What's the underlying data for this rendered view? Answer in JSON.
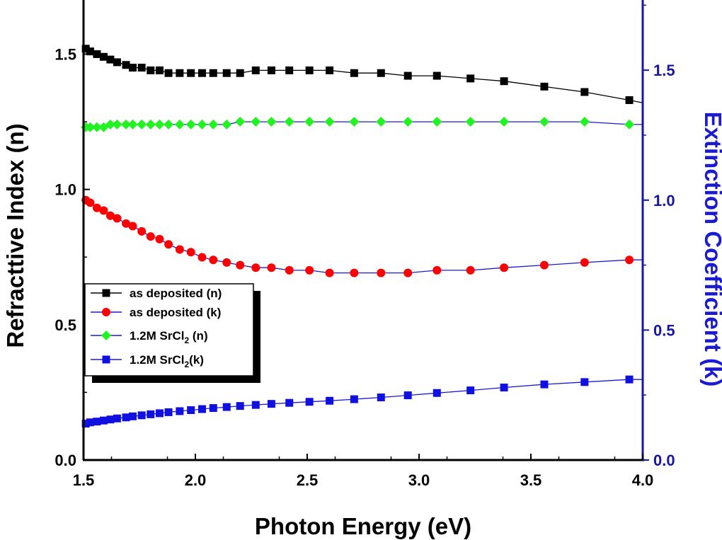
{
  "chart_data": {
    "type": "line",
    "title": "",
    "xlabel": "Photon Energy (eV)",
    "ylabel_left": "Refracttive Index (n)",
    "ylabel_right": "Extinction Coefficient (k)",
    "xlim": [
      1.5,
      4.0
    ],
    "ylim_left": [
      0.0,
      1.7
    ],
    "ylim_right": [
      0.0,
      1.77
    ],
    "x_ticks": [
      "1.5",
      "2.0",
      "2.5",
      "3.0",
      "3.5",
      "4.0"
    ],
    "y_left_ticks": [
      "0.0",
      "0.5",
      "1.0",
      "1.5"
    ],
    "y_right_ticks": [
      "0.0",
      "0.5",
      "1.0",
      "1.5"
    ],
    "grid": false,
    "legend_position": "left-middle",
    "colors": {
      "left_axis": "#000000",
      "right_axis": "#1515a6",
      "right_title": "#1a1ad0"
    },
    "series": [
      {
        "name": "as deposited (n)",
        "axis": "left",
        "marker": "square",
        "color": "#000000",
        "line_color": "#000000",
        "x": [
          1.51,
          1.53,
          1.56,
          1.59,
          1.62,
          1.65,
          1.69,
          1.72,
          1.76,
          1.8,
          1.84,
          1.88,
          1.93,
          1.98,
          2.03,
          2.08,
          2.14,
          2.2,
          2.27,
          2.34,
          2.42,
          2.51,
          2.6,
          2.71,
          2.83,
          2.95,
          3.08,
          3.23,
          3.38,
          3.56,
          3.74,
          3.94,
          4.0
        ],
        "values": [
          1.52,
          1.51,
          1.5,
          1.49,
          1.48,
          1.47,
          1.46,
          1.45,
          1.45,
          1.44,
          1.44,
          1.43,
          1.43,
          1.43,
          1.43,
          1.43,
          1.43,
          1.43,
          1.44,
          1.44,
          1.44,
          1.44,
          1.44,
          1.43,
          1.43,
          1.42,
          1.42,
          1.41,
          1.4,
          1.38,
          1.36,
          1.33,
          1.32
        ]
      },
      {
        "name": "as deposited (k)",
        "axis": "right",
        "marker": "circle",
        "color": "#ff0000",
        "line_color": "#1a1ad0",
        "x": [
          1.51,
          1.53,
          1.56,
          1.59,
          1.62,
          1.65,
          1.69,
          1.72,
          1.76,
          1.8,
          1.84,
          1.88,
          1.93,
          1.98,
          2.03,
          2.08,
          2.14,
          2.2,
          2.27,
          2.34,
          2.42,
          2.51,
          2.6,
          2.71,
          2.83,
          2.95,
          3.08,
          3.23,
          3.38,
          3.56,
          3.74,
          3.94,
          4.0
        ],
        "values": [
          1.0,
          0.99,
          0.97,
          0.96,
          0.94,
          0.93,
          0.91,
          0.9,
          0.88,
          0.86,
          0.85,
          0.83,
          0.81,
          0.8,
          0.78,
          0.77,
          0.76,
          0.75,
          0.74,
          0.74,
          0.73,
          0.73,
          0.72,
          0.72,
          0.72,
          0.72,
          0.73,
          0.73,
          0.74,
          0.75,
          0.76,
          0.77,
          0.77
        ]
      },
      {
        "name": "1.2M SrCl2 (n)",
        "axis": "left",
        "marker": "diamond",
        "color": "#21f221",
        "line_color": "#1a1ad0",
        "x": [
          1.51,
          1.53,
          1.56,
          1.59,
          1.62,
          1.65,
          1.69,
          1.72,
          1.76,
          1.8,
          1.84,
          1.88,
          1.93,
          1.98,
          2.03,
          2.08,
          2.14,
          2.2,
          2.27,
          2.34,
          2.42,
          2.51,
          2.6,
          2.71,
          2.83,
          2.95,
          3.08,
          3.23,
          3.38,
          3.56,
          3.74,
          3.94,
          4.0
        ],
        "values": [
          1.23,
          1.23,
          1.23,
          1.23,
          1.24,
          1.24,
          1.24,
          1.24,
          1.24,
          1.24,
          1.24,
          1.24,
          1.24,
          1.24,
          1.24,
          1.24,
          1.24,
          1.25,
          1.25,
          1.25,
          1.25,
          1.25,
          1.25,
          1.25,
          1.25,
          1.25,
          1.25,
          1.25,
          1.25,
          1.25,
          1.25,
          1.24,
          1.24
        ]
      },
      {
        "name": "1.2M SrCl2(k)",
        "axis": "right",
        "marker": "square",
        "color": "#1010e0",
        "line_color": "#1a1ad0",
        "x": [
          1.51,
          1.53,
          1.56,
          1.59,
          1.62,
          1.65,
          1.69,
          1.72,
          1.76,
          1.8,
          1.84,
          1.88,
          1.93,
          1.98,
          2.03,
          2.08,
          2.14,
          2.2,
          2.27,
          2.34,
          2.42,
          2.51,
          2.6,
          2.71,
          2.83,
          2.95,
          3.08,
          3.23,
          3.38,
          3.56,
          3.74,
          3.94,
          4.0
        ],
        "values": [
          0.14,
          0.145,
          0.148,
          0.152,
          0.156,
          0.16,
          0.164,
          0.168,
          0.172,
          0.176,
          0.18,
          0.184,
          0.188,
          0.192,
          0.196,
          0.2,
          0.204,
          0.208,
          0.212,
          0.216,
          0.22,
          0.224,
          0.228,
          0.234,
          0.241,
          0.249,
          0.258,
          0.268,
          0.279,
          0.291,
          0.3,
          0.31,
          0.31
        ]
      }
    ],
    "legend": [
      {
        "name": "as deposited (n)",
        "label": "as deposited (n)"
      },
      {
        "name": "as deposited (k)",
        "label": "as deposited (k)"
      },
      {
        "name": "1.2M SrCl2 (n)",
        "label_main": "1.2M SrCl",
        "label_sub": "2",
        "label_tail": " (n)"
      },
      {
        "name": "1.2M SrCl2(k)",
        "label_main": "1.2M SrCl",
        "label_sub": "2",
        "label_tail": "(k)"
      }
    ]
  }
}
